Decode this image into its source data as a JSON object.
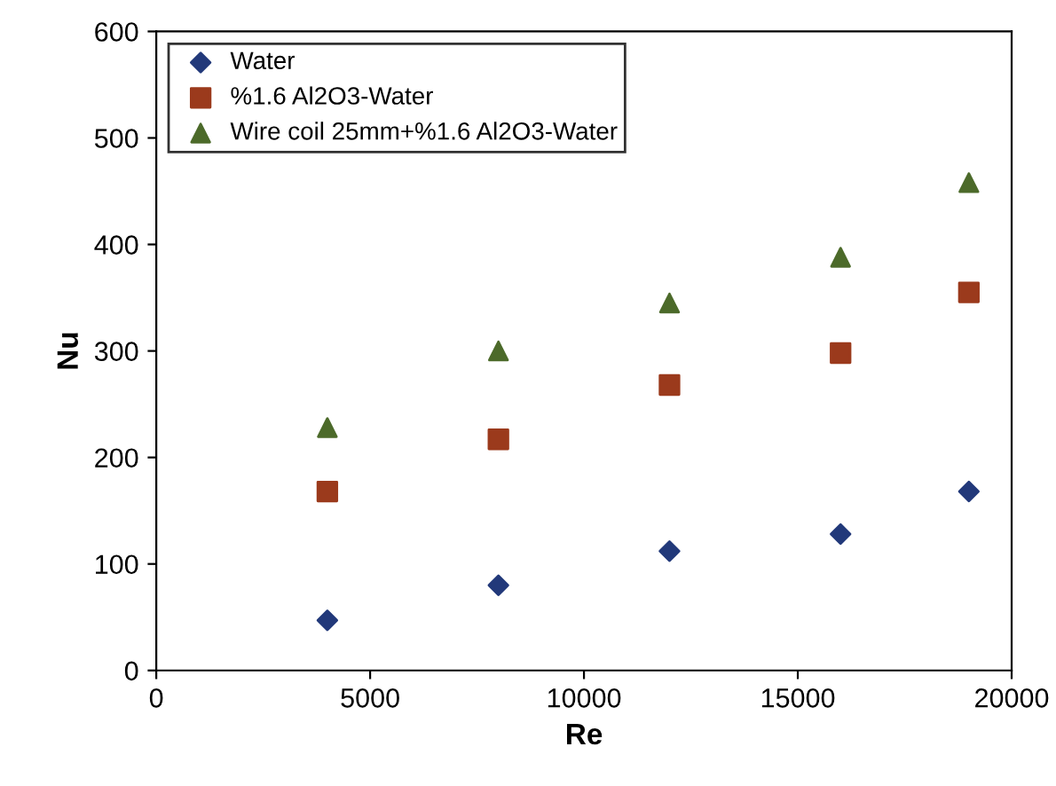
{
  "chart_data": {
    "type": "scatter",
    "xlabel": "Re",
    "ylabel": "Nu",
    "x": [
      4000,
      8000,
      12000,
      16000,
      19000
    ],
    "series": [
      {
        "name": "Water",
        "color": "#22397a",
        "marker": "diamond",
        "values": [
          47,
          80,
          112,
          128,
          168
        ]
      },
      {
        "name": "%1.6 Al2O3-Water",
        "color": "#9b3a1c",
        "marker": "square",
        "values": [
          168,
          217,
          268,
          298,
          355
        ]
      },
      {
        "name": "Wire coil 25mm+%1.6 Al2O3-Water",
        "color": "#4c6a2a",
        "marker": "triangle",
        "values": [
          228,
          300,
          345,
          388,
          458
        ]
      }
    ],
    "xlim": [
      0,
      20000
    ],
    "xticks": [
      0,
      5000,
      10000,
      15000,
      20000
    ],
    "ylim": [
      0,
      600
    ],
    "yticks": [
      0,
      100,
      200,
      300,
      400,
      500,
      600
    ],
    "grid": false,
    "legend": "top left"
  }
}
